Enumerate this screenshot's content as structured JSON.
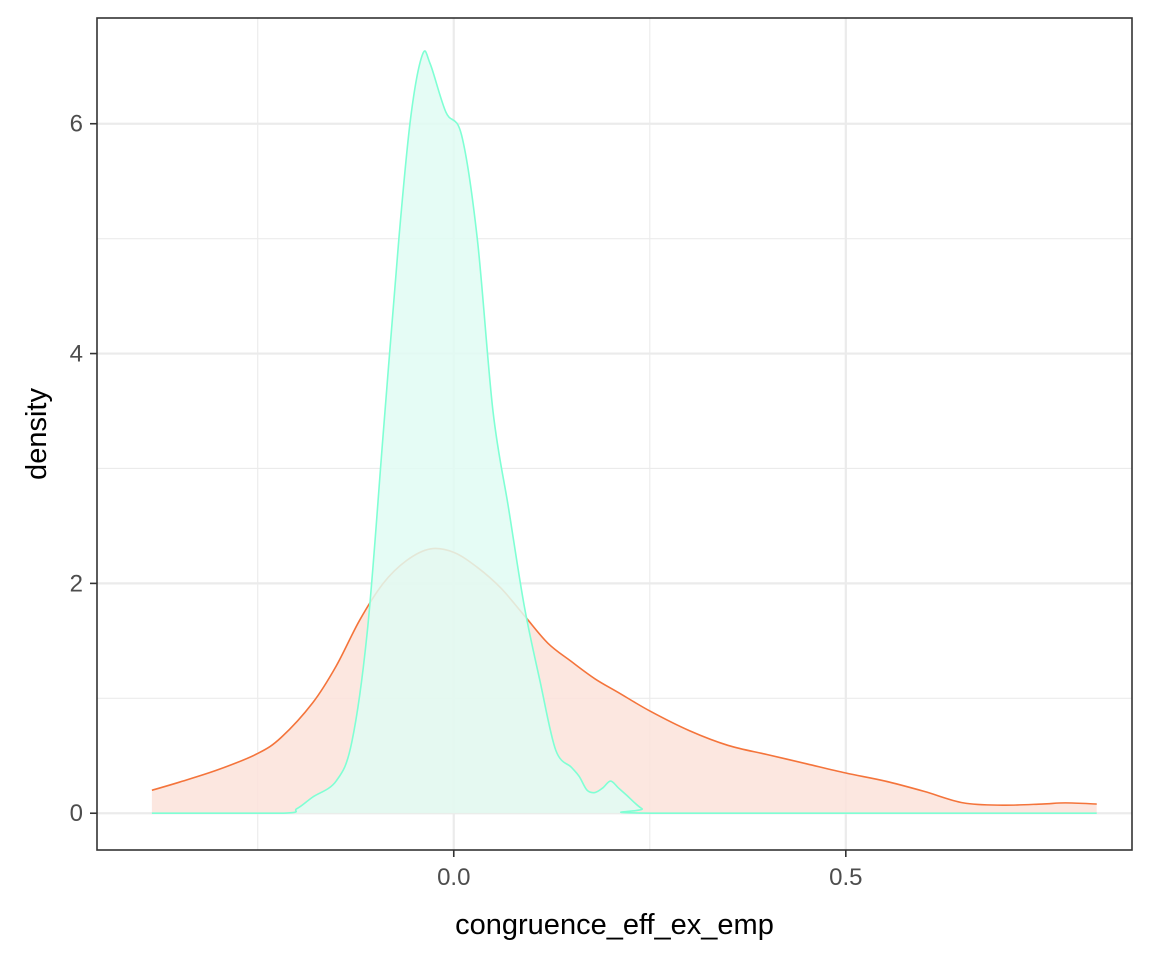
{
  "chart_data": {
    "type": "area",
    "title": "",
    "xlabel": "congruence_eff_ex_emp",
    "ylabel": "density",
    "xlim": [
      -0.455,
      0.865
    ],
    "ylim": [
      -0.32,
      6.92
    ],
    "x_major_ticks": [
      0.0,
      0.5
    ],
    "x_major_tick_labels": [
      "0.0",
      "0.5"
    ],
    "x_minor_ticks": [
      -0.25,
      0.25
    ],
    "y_major_ticks": [
      0,
      2,
      4,
      6
    ],
    "y_major_tick_labels": [
      "0",
      "2",
      "4",
      "6"
    ],
    "y_minor_ticks": [
      1,
      3,
      5
    ],
    "grid": true,
    "legend": "none",
    "theme": "bw",
    "series": [
      {
        "color": "#F4743B",
        "fill": "#FCE3DA",
        "points": [
          [
            -0.385,
            0.2
          ],
          [
            -0.35,
            0.27
          ],
          [
            -0.3,
            0.38
          ],
          [
            -0.25,
            0.52
          ],
          [
            -0.22,
            0.66
          ],
          [
            -0.18,
            0.96
          ],
          [
            -0.15,
            1.28
          ],
          [
            -0.12,
            1.68
          ],
          [
            -0.09,
            2.0
          ],
          [
            -0.06,
            2.2
          ],
          [
            -0.03,
            2.3
          ],
          [
            0.0,
            2.27
          ],
          [
            0.03,
            2.14
          ],
          [
            0.06,
            1.96
          ],
          [
            0.09,
            1.72
          ],
          [
            0.12,
            1.48
          ],
          [
            0.15,
            1.32
          ],
          [
            0.18,
            1.17
          ],
          [
            0.21,
            1.05
          ],
          [
            0.25,
            0.89
          ],
          [
            0.3,
            0.72
          ],
          [
            0.35,
            0.59
          ],
          [
            0.4,
            0.51
          ],
          [
            0.45,
            0.43
          ],
          [
            0.5,
            0.35
          ],
          [
            0.55,
            0.28
          ],
          [
            0.6,
            0.19
          ],
          [
            0.65,
            0.09
          ],
          [
            0.7,
            0.07
          ],
          [
            0.75,
            0.08
          ],
          [
            0.78,
            0.09
          ],
          [
            0.82,
            0.08
          ]
        ]
      },
      {
        "color": "#7FFFD4",
        "fill": "#E0FCF3",
        "points": [
          [
            -0.385,
            0.0
          ],
          [
            -0.22,
            0.0
          ],
          [
            -0.2,
            0.04
          ],
          [
            -0.18,
            0.14
          ],
          [
            -0.15,
            0.28
          ],
          [
            -0.13,
            0.62
          ],
          [
            -0.11,
            1.6
          ],
          [
            -0.09,
            3.3
          ],
          [
            -0.07,
            5.0
          ],
          [
            -0.055,
            6.05
          ],
          [
            -0.04,
            6.6
          ],
          [
            -0.03,
            6.52
          ],
          [
            -0.01,
            6.1
          ],
          [
            0.01,
            5.9
          ],
          [
            0.03,
            5.0
          ],
          [
            0.05,
            3.5
          ],
          [
            0.07,
            2.65
          ],
          [
            0.09,
            1.8
          ],
          [
            0.11,
            1.15
          ],
          [
            0.13,
            0.55
          ],
          [
            0.15,
            0.4
          ],
          [
            0.16,
            0.32
          ],
          [
            0.17,
            0.2
          ],
          [
            0.18,
            0.18
          ],
          [
            0.19,
            0.22
          ],
          [
            0.2,
            0.28
          ],
          [
            0.21,
            0.22
          ],
          [
            0.22,
            0.16
          ],
          [
            0.24,
            0.04
          ],
          [
            0.26,
            0.0
          ],
          [
            0.82,
            0.0
          ]
        ]
      }
    ]
  }
}
